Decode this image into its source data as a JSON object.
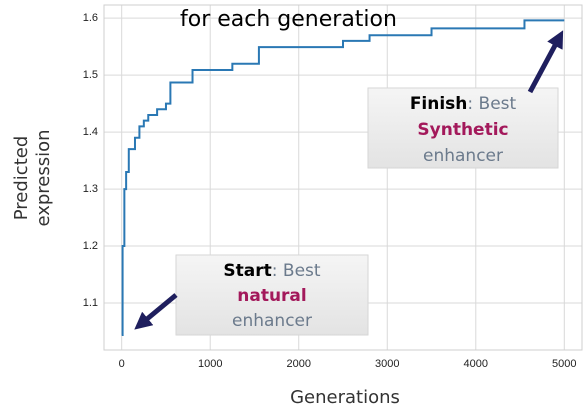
{
  "chart_data": {
    "type": "line",
    "title": "for each generation",
    "xlabel": "Generations",
    "ylabel": [
      "Predicted",
      "expression"
    ],
    "x": [
      0,
      10,
      10,
      30,
      30,
      50,
      50,
      80,
      80,
      150,
      150,
      200,
      200,
      250,
      250,
      300,
      300,
      400,
      400,
      500,
      500,
      550,
      550,
      800,
      800,
      1250,
      1250,
      1550,
      1550,
      2500,
      2500,
      2800,
      2800,
      3500,
      3500,
      4550,
      4550,
      5000
    ],
    "values": [
      1.044,
      1.044,
      1.2,
      1.2,
      1.3,
      1.3,
      1.33,
      1.33,
      1.37,
      1.37,
      1.39,
      1.39,
      1.41,
      1.41,
      1.42,
      1.42,
      1.43,
      1.43,
      1.44,
      1.44,
      1.45,
      1.45,
      1.487,
      1.487,
      1.509,
      1.509,
      1.52,
      1.52,
      1.549,
      1.549,
      1.56,
      1.56,
      1.57,
      1.57,
      1.582,
      1.582,
      1.596,
      1.596
    ],
    "color": "#2a78b4",
    "xlim": [
      -200,
      5200
    ],
    "xticks": [
      0,
      1000,
      2000,
      3000,
      4000,
      5000
    ],
    "ylim": [
      1.0176,
      1.623
    ],
    "yticks": [
      1.1,
      1.2,
      1.3,
      1.4,
      1.5,
      1.6
    ],
    "grid": true,
    "annotations": [
      {
        "lead": "Start",
        "text": ": Best",
        "highlight": "natural",
        "rest": "enhancer"
      },
      {
        "lead": "Finish",
        "text": ": Best",
        "highlight": "Synthetic",
        "rest": "enhancer"
      }
    ]
  }
}
